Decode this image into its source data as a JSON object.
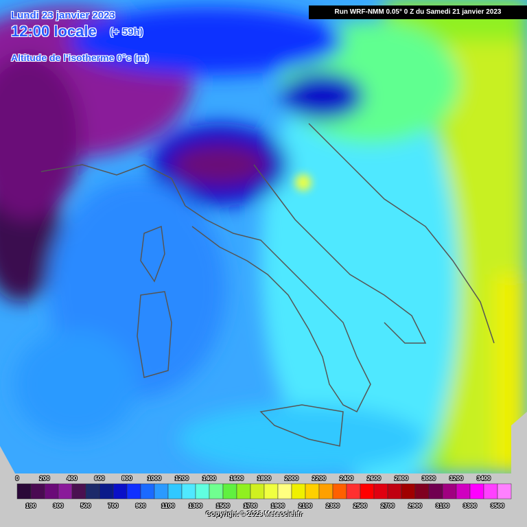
{
  "header": {
    "date": "Lundi 23 janvier 2023",
    "time": "12:00 locale",
    "lead": "(+ 59h)",
    "subtitle": "Altitude de l'isotherme 0°c (m)"
  },
  "run_info": "Run WRF-NMM 0.05° 0 Z du Samedi 21 janvier 2023",
  "legend": {
    "top_labels": [
      0,
      200,
      400,
      600,
      800,
      1000,
      1200,
      1400,
      1600,
      1800,
      2000,
      2200,
      2400,
      2600,
      2800,
      3000,
      3200,
      3400
    ],
    "bottom_labels": [
      100,
      300,
      500,
      700,
      900,
      1100,
      1300,
      1500,
      1700,
      1900,
      2100,
      2300,
      2500,
      2700,
      2900,
      3100,
      3300,
      3500
    ],
    "colors": [
      "#2a0838",
      "#4a0a52",
      "#6a0a78",
      "#8a1a9a",
      "#4a1050",
      "#1c2a6a",
      "#0a1a8a",
      "#0a10c8",
      "#1030ff",
      "#1a6aff",
      "#2a9aff",
      "#30c8ff",
      "#50e8ff",
      "#60ffe0",
      "#70ff90",
      "#60f040",
      "#90f020",
      "#d0f020",
      "#f0ff40",
      "#ffff80",
      "#f0f000",
      "#ffd000",
      "#ffa000",
      "#ff6000",
      "#ff3030",
      "#ff0000",
      "#e00010",
      "#c00010",
      "#a00000",
      "#800020",
      "#700050",
      "#a00080",
      "#d000c0",
      "#ff00ff",
      "#ff40ff",
      "#ff80ff"
    ]
  },
  "copyright": "Copyright © 2023 Meteociel.fr"
}
